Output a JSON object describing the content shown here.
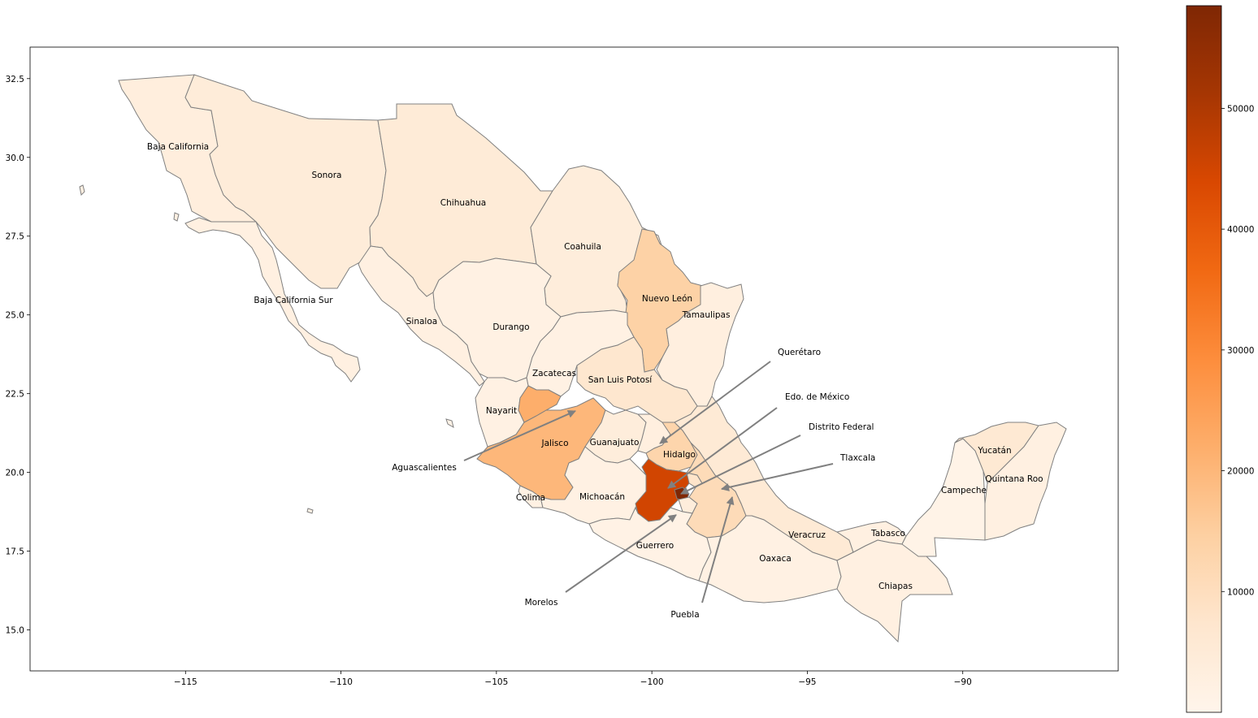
{
  "map": {
    "colorbar": {
      "colormap": "Oranges",
      "min": 0,
      "max": 58500,
      "ticks": [
        "10000",
        "20000",
        "30000",
        "40000",
        "50000"
      ],
      "tick_values": [
        10000,
        20000,
        30000,
        40000,
        50000
      ],
      "low_color": "#fff5eb",
      "high_color": "#7f2704"
    },
    "axes": {
      "x_ticks": [
        "−115",
        "−110",
        "−105",
        "−100",
        "−95",
        "−90"
      ],
      "x_values": [
        -115,
        -110,
        -105,
        -100,
        -95,
        -90
      ],
      "y_ticks": [
        "15.0",
        "17.5",
        "20.0",
        "22.5",
        "25.0",
        "27.5",
        "30.0",
        "32.5"
      ],
      "y_values": [
        15.0,
        17.5,
        20.0,
        22.5,
        25.0,
        27.5,
        30.0,
        32.5
      ],
      "xlim": [
        -120.0,
        -85.0
      ],
      "ylim": [
        13.7,
        33.5
      ]
    },
    "states": [
      {
        "name": "Baja California",
        "value": 3500
      },
      {
        "name": "Sonora",
        "value": 4500
      },
      {
        "name": "Chihuahua",
        "value": 5000
      },
      {
        "name": "Coahuila",
        "value": 4000
      },
      {
        "name": "Baja California Sur",
        "value": 2500
      },
      {
        "name": "Nuevo León",
        "value": 14000
      },
      {
        "name": "Tamaulipas",
        "value": 3000
      },
      {
        "name": "Sinaloa",
        "value": 2500
      },
      {
        "name": "Durango",
        "value": 2000
      },
      {
        "name": "Zacatecas",
        "value": 2000
      },
      {
        "name": "San Luis Potosí",
        "value": 7000
      },
      {
        "name": "Nayarit",
        "value": 2000
      },
      {
        "name": "Jalisco",
        "value": 20000
      },
      {
        "name": "Guanajuato",
        "value": 4000
      },
      {
        "name": "Hidalgo",
        "value": 13000
      },
      {
        "name": "Querétaro",
        "value": 3000
      },
      {
        "name": "Aguascalientes",
        "value": 22000
      },
      {
        "name": "Colima",
        "value": 2000
      },
      {
        "name": "Michoacán",
        "value": 2000
      },
      {
        "name": "Edo. de México",
        "value": 45000
      },
      {
        "name": "Distrito Federal",
        "value": 58500
      },
      {
        "name": "Tlaxcala",
        "value": 8000
      },
      {
        "name": "Morelos",
        "value": 4000
      },
      {
        "name": "Puebla",
        "value": 11000
      },
      {
        "name": "Guerrero",
        "value": 1500
      },
      {
        "name": "Veracruz",
        "value": 5500
      },
      {
        "name": "Oaxaca",
        "value": 2000
      },
      {
        "name": "Tabasco",
        "value": 2500
      },
      {
        "name": "Chiapas",
        "value": 2500
      },
      {
        "name": "Campeche",
        "value": 1000
      },
      {
        "name": "Yucatán",
        "value": 6000
      },
      {
        "name": "Quintana Roo",
        "value": 2500
      }
    ]
  }
}
